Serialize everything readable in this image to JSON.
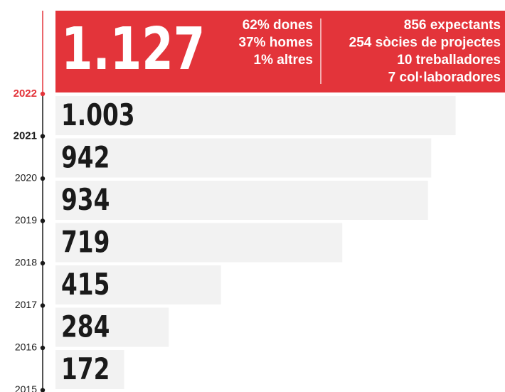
{
  "chart_data": {
    "type": "bar",
    "orientation": "horizontal",
    "categories": [
      "2022",
      "2021",
      "2020",
      "2019",
      "2018",
      "2017",
      "2016",
      "2015"
    ],
    "values": [
      1127,
      1003,
      942,
      934,
      719,
      415,
      284,
      172
    ],
    "value_labels": [
      "1.127",
      "1.003",
      "942",
      "934",
      "719",
      "415",
      "284",
      "172"
    ],
    "colors": {
      "highlight": "#e3343a",
      "bar": "#f2f2f2",
      "axis": "#1a1a1a"
    },
    "annotations": {
      "breakdown": [
        "62% dones",
        "37% homes",
        "1% altres"
      ],
      "members": [
        "856 expectants",
        "254 sòcies de projectes",
        "10 treballadores",
        "7 col·laboradores"
      ]
    }
  }
}
